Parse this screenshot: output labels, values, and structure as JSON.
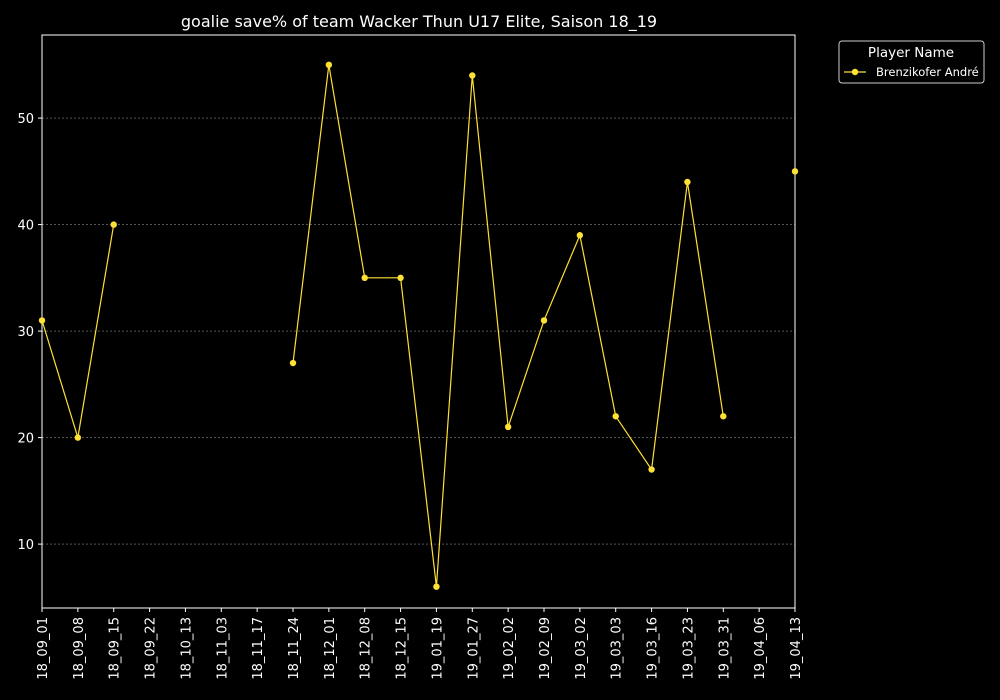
{
  "chart_data": {
    "type": "line",
    "title": "goalie save% of team Wacker Thun U17 Elite, Saison 18_19",
    "xlabel": "",
    "ylabel": "",
    "x_ticks": [
      "18_09_01",
      "18_09_08",
      "18_09_15",
      "18_09_22",
      "18_10_13",
      "18_11_03",
      "18_11_17",
      "18_11_24",
      "18_12_01",
      "18_12_08",
      "18_12_15",
      "19_01_19",
      "19_01_27",
      "19_02_02",
      "19_02_09",
      "19_03_02",
      "19_03_03",
      "19_03_16",
      "19_03_23",
      "19_03_31",
      "19_04_06",
      "19_04_13"
    ],
    "y_ticks": [
      10,
      20,
      30,
      40,
      50
    ],
    "ylim": [
      4,
      57.8
    ],
    "grid": true,
    "legend": {
      "title": "Player Name",
      "placement": "outside-top-right"
    },
    "series": [
      {
        "name": "Brenzikofer André",
        "color": "#ffe135",
        "values": [
          31,
          20,
          40,
          null,
          null,
          null,
          null,
          27,
          55,
          35,
          35,
          6,
          54,
          21,
          31,
          39,
          22,
          17,
          44,
          22,
          null,
          45
        ]
      }
    ],
    "colors": {
      "background": "#000000",
      "axes": "#ffffff",
      "grid": "#888888",
      "text": "#ffffff"
    }
  }
}
